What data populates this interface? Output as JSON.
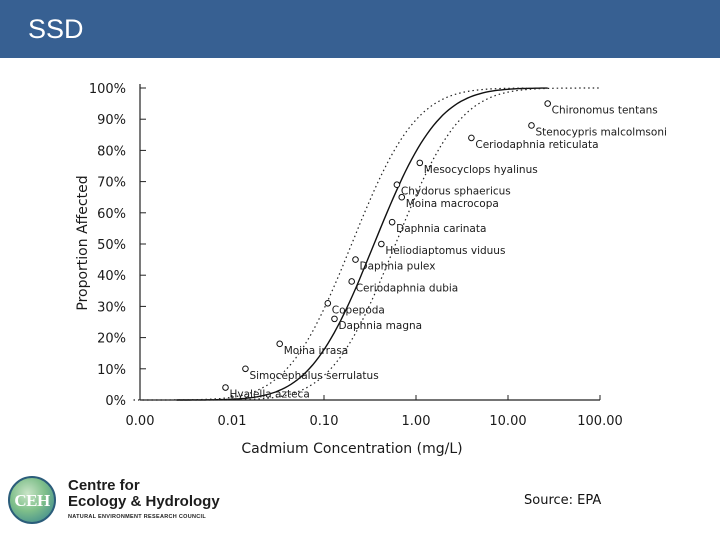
{
  "header": {
    "title": "SSD"
  },
  "chart_data": {
    "type": "scatter",
    "title": "",
    "xlabel": "Cadmium Concentration (mg/L)",
    "ylabel": "Proportion Affected",
    "x_scale": "log",
    "xlim": [
      0.001,
      100
    ],
    "ylim": [
      0,
      1
    ],
    "x_ticks": [
      {
        "value": 0.001,
        "label": "0.00"
      },
      {
        "value": 0.01,
        "label": "0.01"
      },
      {
        "value": 0.1,
        "label": "0.10"
      },
      {
        "value": 1,
        "label": "1.00"
      },
      {
        "value": 10,
        "label": "10.00"
      },
      {
        "value": 100,
        "label": "100.00"
      }
    ],
    "y_ticks": [
      {
        "value": 0,
        "label": "0%"
      },
      {
        "value": 0.1,
        "label": "10%"
      },
      {
        "value": 0.2,
        "label": "20%"
      },
      {
        "value": 0.3,
        "label": "30%"
      },
      {
        "value": 0.4,
        "label": "40%"
      },
      {
        "value": 0.5,
        "label": "50%"
      },
      {
        "value": 0.6,
        "label": "60%"
      },
      {
        "value": 0.7,
        "label": "70%"
      },
      {
        "value": 0.8,
        "label": "80%"
      },
      {
        "value": 0.9,
        "label": "90%"
      },
      {
        "value": 1,
        "label": "100%"
      }
    ],
    "grid": false,
    "points": [
      {
        "label": "Hyalella azteca",
        "x": 0.0085,
        "y": 0.04
      },
      {
        "label": "Simocephalus serrulatus",
        "x": 0.014,
        "y": 0.1
      },
      {
        "label": "Moina irrasa",
        "x": 0.033,
        "y": 0.18
      },
      {
        "label": "Daphnia magna",
        "x": 0.13,
        "y": 0.26
      },
      {
        "label": "Copepoda",
        "x": 0.11,
        "y": 0.31
      },
      {
        "label": "Ceriodaphnia dubia",
        "x": 0.2,
        "y": 0.38
      },
      {
        "label": "Daphnia pulex",
        "x": 0.22,
        "y": 0.45
      },
      {
        "label": "Heliodiaptomus viduus",
        "x": 0.42,
        "y": 0.5
      },
      {
        "label": "Daphnia carinata",
        "x": 0.55,
        "y": 0.57
      },
      {
        "label": "Moina macrocopa",
        "x": 0.7,
        "y": 0.65
      },
      {
        "label": "Chydorus sphaericus",
        "x": 0.62,
        "y": 0.69
      },
      {
        "label": "Mesocyclops hyalinus",
        "x": 1.1,
        "y": 0.76
      },
      {
        "label": "Ceriodaphnia reticulata",
        "x": 4.0,
        "y": 0.84
      },
      {
        "label": "Stenocypris malcolmsoni",
        "x": 18,
        "y": 0.88
      },
      {
        "label": "Chironomus tentans",
        "x": 27,
        "y": 0.95
      }
    ],
    "fit_curve": {
      "x0": 0.35,
      "beta": 0.55,
      "x_range": [
        0.0025,
        27
      ]
    },
    "upper_bound": {
      "x0": 0.2,
      "beta": 0.55,
      "x_range": [
        0.00085,
        16
      ]
    },
    "lower_bound": {
      "x0": 0.6,
      "beta": 0.55,
      "x_range": [
        0.004,
        100
      ]
    }
  },
  "logo": {
    "abbrev": "CEH",
    "line1": "Centre for",
    "line2": "Ecology & Hydrology",
    "line3": "NATURAL ENVIRONMENT RESEARCH COUNCIL"
  },
  "source": "Source: EPA"
}
